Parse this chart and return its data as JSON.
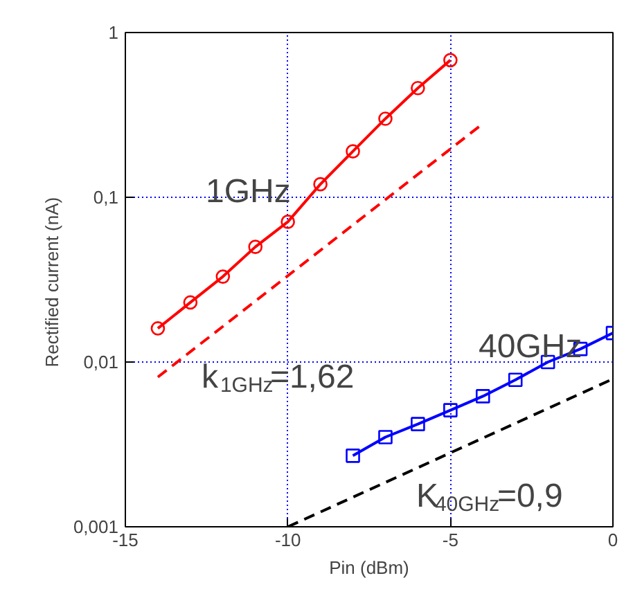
{
  "chart_data": {
    "type": "line",
    "xlabel": "Pin (dBm)",
    "ylabel": "Rectified current  (nA)",
    "log": "y",
    "grid": true,
    "xlim": [
      -15,
      0
    ],
    "xticks": [
      -15,
      -10,
      -5,
      0
    ],
    "ylim": [
      0.001,
      1
    ],
    "yticks": [
      {
        "value": 0.001,
        "label": "0,001"
      },
      {
        "value": 0.01,
        "label": "0,01"
      },
      {
        "value": 0.1,
        "label": "0,1"
      },
      {
        "value": 1,
        "label": "1"
      }
    ],
    "series": [
      {
        "color": "#ff0000",
        "marker": "circle",
        "line_style": "solid",
        "x": [
          -14,
          -13,
          -12,
          -11,
          -10,
          -9,
          -8,
          -7,
          -6,
          -5
        ],
        "values": [
          0.016,
          0.023,
          0.033,
          0.05,
          0.071,
          0.12,
          0.19,
          0.3,
          0.46,
          0.68
        ]
      },
      {
        "color": "#ff0000",
        "marker": "none",
        "line_style": "dashed",
        "x": [
          -14,
          -4
        ],
        "values": [
          0.0081,
          0.28
        ]
      },
      {
        "color": "#0000ff",
        "marker": "square",
        "line_style": "solid",
        "x": [
          -8,
          -7,
          -6,
          -5,
          -4,
          -3,
          -2,
          -1,
          0
        ],
        "values": [
          0.0027,
          0.0035,
          0.0042,
          0.0051,
          0.0062,
          0.0078,
          0.01,
          0.012,
          0.015
        ]
      },
      {
        "color": "#000000",
        "marker": "none",
        "line_style": "dashed",
        "x": [
          -10,
          0
        ],
        "values": [
          0.001,
          0.0079
        ]
      }
    ],
    "annotations": [
      "1GHz",
      "40GHz",
      "k$_{1GHz}$=1,62",
      "K$_{40GHz}$=0,9"
    ]
  }
}
